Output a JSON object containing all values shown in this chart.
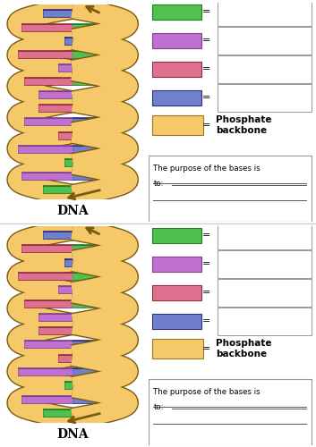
{
  "background_color": "#ffffff",
  "base_colors": [
    "#50c050",
    "#c070d0",
    "#e07090",
    "#7080cc"
  ],
  "base_border_colors": [
    "#208020",
    "#804090",
    "#903040",
    "#303080"
  ],
  "phosphate_color": "#f5c96a",
  "phosphate_edge": "#9a7820",
  "backbone_color": "#f5c96a",
  "backbone_edge": "#7a5a10",
  "text_color": "#000000",
  "dna_label": "DNA",
  "num_panels": 2,
  "answer_box_text1": "The purpose of the bases is",
  "answer_box_text2": "to:"
}
